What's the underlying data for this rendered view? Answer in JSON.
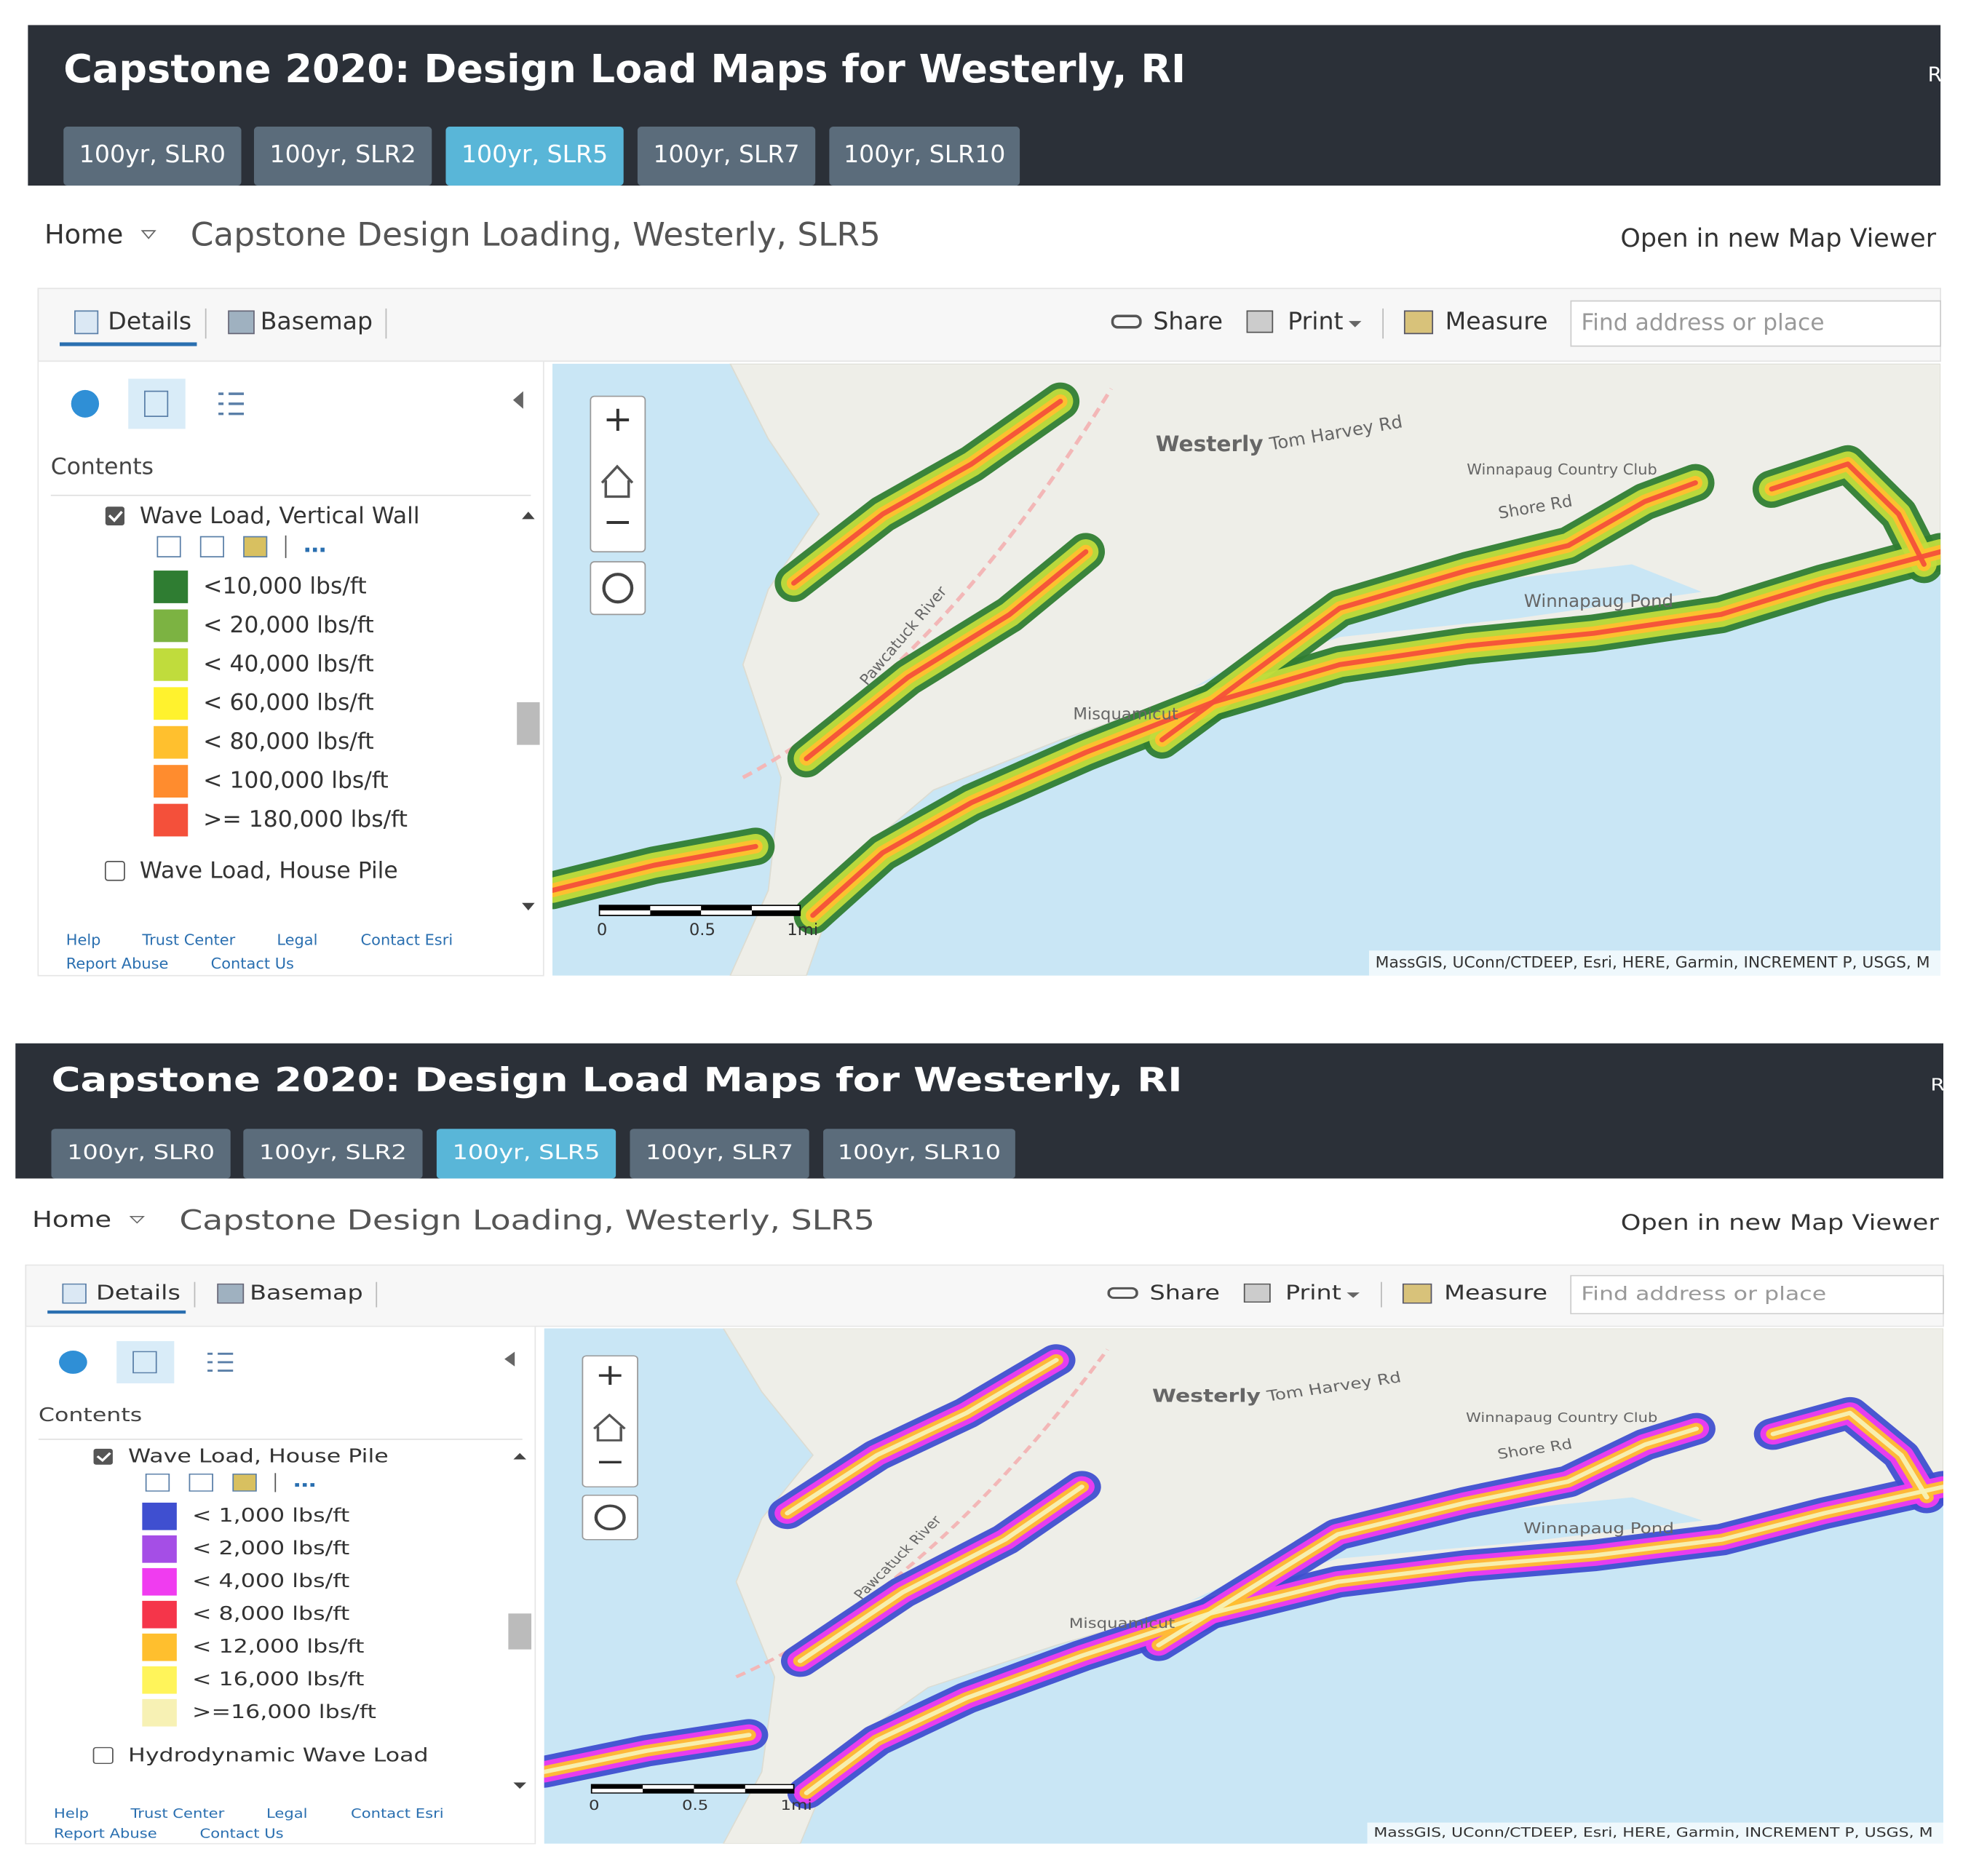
{
  "panels": [
    {
      "title": "Capstone 2020: Design Load Maps for Westerly, RI",
      "header_corner": "R",
      "tabs": [
        "100yr, SLR0",
        "100yr, SLR2",
        "100yr, SLR5",
        "100yr, SLR7",
        "100yr, SLR10"
      ],
      "active_tab": 2,
      "breadcrumb": "Home",
      "map_title": "Capstone Design Loading, Westerly, SLR5",
      "open_link": "Open in new Map Viewer",
      "toolbar": {
        "details": "Details",
        "basemap": "Basemap",
        "share": "Share",
        "print": "Print",
        "measure": "Measure",
        "search_placeholder": "Find address or place"
      },
      "contents_label": "Contents",
      "layer": "Wave Load, Vertical Wall",
      "legend": [
        {
          "label": "<10,000 lbs/ft",
          "color": "#2f7d32"
        },
        {
          "label": "< 20,000 lbs/ft",
          "color": "#7cb342"
        },
        {
          "label": "< 40,000 lbs/ft",
          "color": "#c0dc3c"
        },
        {
          "label": "< 60,000 lbs/ft",
          "color": "#fff22e"
        },
        {
          "label": "< 80,000 lbs/ft",
          "color": "#ffc02e"
        },
        {
          "label": "< 100,000 lbs/ft",
          "color": "#ff8c2e"
        },
        {
          "label": ">= 180,000 lbs/ft",
          "color": "#f4503a"
        }
      ],
      "next_layer": "Wave Load, House Pile",
      "footer_links": [
        "Help",
        "Trust Center",
        "Legal",
        "Contact Esri",
        "Report Abuse",
        "Contact Us"
      ],
      "scale_labels": [
        "0",
        "0.5",
        "1mi"
      ],
      "attribution": "MassGIS, UConn/CTDEEP, Esri, HERE, Garmin, INCREMENT P, USGS, M",
      "map_labels": [
        "Westerly",
        "Tom Harvey Rd",
        "Winnapaug Country Club",
        "Shore Rd",
        "Winnapaug Pond",
        "Misquamicut",
        "Pawcatuck River"
      ]
    },
    {
      "title": "Capstone 2020: Design Load Maps for Westerly, RI",
      "header_corner": "R",
      "tabs": [
        "100yr, SLR0",
        "100yr, SLR2",
        "100yr, SLR5",
        "100yr, SLR7",
        "100yr, SLR10"
      ],
      "active_tab": 2,
      "breadcrumb": "Home",
      "map_title": "Capstone Design Loading, Westerly, SLR5",
      "open_link": "Open in new Map Viewer",
      "toolbar": {
        "details": "Details",
        "basemap": "Basemap",
        "share": "Share",
        "print": "Print",
        "measure": "Measure",
        "search_placeholder": "Find address or place"
      },
      "contents_label": "Contents",
      "layer": "Wave Load, House Pile",
      "legend": [
        {
          "label": "< 1,000 lbs/ft",
          "color": "#3f4fd0"
        },
        {
          "label": "< 2,000 lbs/ft",
          "color": "#a54ee6"
        },
        {
          "label": "< 4,000 lbs/ft",
          "color": "#f03cf0"
        },
        {
          "label": "< 8,000 lbs/ft",
          "color": "#f5354a"
        },
        {
          "label": "< 12,000 lbs/ft",
          "color": "#ffbf2e"
        },
        {
          "label": "< 16,000 lbs/ft",
          "color": "#fff45a"
        },
        {
          "label": ">=16,000 lbs/ft",
          "color": "#f7f1b4"
        }
      ],
      "next_layer": "Hydrodynamic Wave Load",
      "footer_links": [
        "Help",
        "Trust Center",
        "Legal",
        "Contact Esri",
        "Report Abuse",
        "Contact Us"
      ],
      "scale_labels": [
        "0",
        "0.5",
        "1mi"
      ],
      "attribution": "MassGIS, UConn/CTDEEP, Esri, HERE, Garmin, INCREMENT P, USGS, M",
      "map_labels": [
        "Westerly",
        "Tom Harvey Rd",
        "Winnapaug Country Club",
        "Shore Rd",
        "Winnapaug Pond",
        "Misquamicut",
        "Pawcatuck River"
      ]
    }
  ]
}
